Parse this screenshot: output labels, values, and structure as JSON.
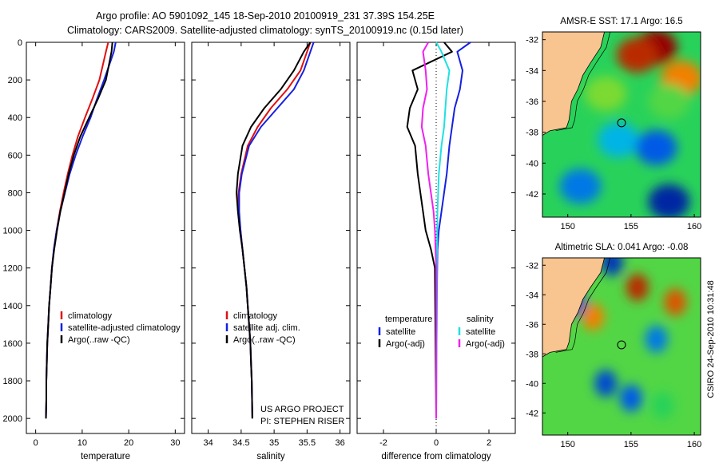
{
  "header": {
    "title_line1": "Argo profile: AO 5901092_145 18-Sep-2010 20100919_231 37.39S 154.25E",
    "title_line2": "Climatology: CARS2009. Satellite-adjusted climatology: synTS_20100919.nc (0.15d later)"
  },
  "colors": {
    "red": "#e01010",
    "blue": "#1520e0",
    "black": "#000000",
    "cyan": "#20e0e0",
    "magenta": "#f020f0",
    "land": "#f8c490"
  },
  "chart_data": [
    {
      "type": "line",
      "id": "temperature",
      "xlabel": "temperature",
      "ylabel": "",
      "xlim": [
        -2,
        32
      ],
      "ylim": [
        2080,
        0
      ],
      "xticks": [
        0,
        10,
        20,
        30
      ],
      "yticks": [
        0,
        200,
        400,
        600,
        800,
        1000,
        1200,
        1400,
        1600,
        1800,
        2000
      ],
      "legend": [
        "climatology",
        "satellite-adjusted climatology",
        "Argo(..raw -QC)"
      ],
      "series": [
        {
          "name": "climatology",
          "color": "red",
          "x": [
            15.6,
            15.1,
            13.7,
            12.2,
            10.6,
            9.1,
            7.9,
            6.9,
            6.0,
            5.2,
            4.5,
            3.9,
            3.5,
            3.2,
            2.9,
            2.7,
            2.5,
            2.4,
            2.3,
            2.3,
            2.2
          ],
          "y": [
            0,
            50,
            200,
            300,
            400,
            500,
            600,
            700,
            800,
            900,
            1000,
            1100,
            1200,
            1300,
            1400,
            1500,
            1600,
            1700,
            1800,
            1900,
            2000
          ]
        },
        {
          "name": "satellite-adjusted climatology",
          "color": "blue",
          "x": [
            17.2,
            16.8,
            14.7,
            13.2,
            11.8,
            10.1,
            8.6,
            7.3,
            6.3,
            5.3,
            4.5,
            3.9,
            3.5,
            3.2,
            2.9,
            2.7,
            2.5,
            2.4,
            2.3,
            2.3,
            2.2
          ],
          "y": [
            0,
            50,
            200,
            300,
            400,
            500,
            600,
            700,
            800,
            900,
            1000,
            1100,
            1200,
            1300,
            1400,
            1500,
            1600,
            1700,
            1800,
            1900,
            2000
          ]
        },
        {
          "name": "Argo(..raw -QC)",
          "color": "black",
          "x": [
            16.5,
            16.3,
            15.1,
            13.4,
            11.5,
            9.6,
            8.2,
            7.1,
            6.2,
            5.3,
            4.6,
            4.0,
            3.5,
            3.2,
            2.9,
            2.7,
            2.5,
            2.4,
            2.3,
            2.3,
            2.2
          ],
          "y": [
            0,
            50,
            200,
            300,
            400,
            500,
            600,
            700,
            800,
            900,
            1000,
            1100,
            1200,
            1300,
            1400,
            1500,
            1600,
            1700,
            1800,
            1900,
            2000
          ]
        }
      ]
    },
    {
      "type": "line",
      "id": "salinity",
      "xlabel": "salinity",
      "ylabel": "",
      "xlim": [
        33.75,
        36.15
      ],
      "ylim": [
        2080,
        0
      ],
      "xticks": [
        34,
        34.5,
        35,
        35.5,
        36
      ],
      "legend": [
        "climatology",
        "satellite adj. clim.",
        "Argo(..raw -QC)"
      ],
      "annotations": [
        "US ARGO PROJECT",
        "PI: STEPHEN RISER"
      ],
      "series": [
        {
          "name": "climatology",
          "color": "red",
          "x": [
            35.55,
            35.5,
            35.4,
            35.2,
            34.95,
            34.75,
            34.6,
            34.5,
            34.46,
            34.46,
            34.49,
            34.52,
            34.55,
            34.58,
            34.6,
            34.62,
            34.64,
            34.65,
            34.66,
            34.67
          ],
          "y": [
            0,
            50,
            150,
            250,
            350,
            450,
            550,
            700,
            800,
            900,
            1000,
            1100,
            1200,
            1300,
            1400,
            1500,
            1600,
            1700,
            1800,
            2000
          ]
        },
        {
          "name": "satellite adj. clim.",
          "color": "blue",
          "x": [
            35.6,
            35.55,
            35.45,
            35.3,
            35.05,
            34.8,
            34.62,
            34.51,
            34.47,
            34.47,
            34.49,
            34.52,
            34.55,
            34.58,
            34.6,
            34.62,
            34.64,
            34.65,
            34.66,
            34.67
          ],
          "y": [
            0,
            50,
            150,
            250,
            350,
            450,
            550,
            700,
            800,
            900,
            1000,
            1100,
            1200,
            1300,
            1400,
            1500,
            1600,
            1700,
            1800,
            2000
          ]
        },
        {
          "name": "Argo(..raw -QC)",
          "color": "black",
          "x": [
            35.55,
            35.45,
            35.3,
            35.1,
            34.85,
            34.65,
            34.52,
            34.45,
            34.43,
            34.45,
            34.48,
            34.52,
            34.55,
            34.58,
            34.6,
            34.62,
            34.64,
            34.65,
            34.66,
            34.67
          ],
          "y": [
            0,
            50,
            150,
            250,
            350,
            450,
            550,
            700,
            800,
            900,
            1000,
            1100,
            1200,
            1300,
            1400,
            1500,
            1600,
            1700,
            1800,
            2000
          ]
        }
      ]
    },
    {
      "type": "line",
      "id": "difference",
      "xlabel": "difference from climatology",
      "ylabel": "",
      "xlim": [
        -3,
        3
      ],
      "ylim": [
        2080,
        0
      ],
      "xticks": [
        -2,
        0,
        2
      ],
      "legend_left_title": "temperature",
      "legend_right_title": "salinity",
      "legend": [
        "satellite",
        "Argo(-adj)",
        "satellite",
        "Argo(-adj)"
      ],
      "series": [
        {
          "name": "temperature satellite",
          "color": "blue",
          "x": [
            1.3,
            0.8,
            1.0,
            0.9,
            0.7,
            0.6,
            0.5,
            0.4,
            0.3,
            0.2,
            0.1,
            0.05,
            0.03,
            0.02,
            0.01,
            0.0
          ],
          "y": [
            0,
            50,
            150,
            250,
            350,
            450,
            550,
            700,
            800,
            900,
            1000,
            1100,
            1300,
            1500,
            1700,
            2000
          ]
        },
        {
          "name": "temperature Argo(-adj)",
          "color": "black",
          "x": [
            0.3,
            0.6,
            -0.9,
            -0.7,
            -1.0,
            -1.1,
            -0.8,
            -0.7,
            -0.6,
            -0.5,
            -0.4,
            -0.2,
            -0.05,
            0.0
          ],
          "y": [
            0,
            50,
            150,
            250,
            350,
            450,
            550,
            700,
            800,
            900,
            1000,
            1100,
            1200,
            2000
          ]
        },
        {
          "name": "salinity satellite",
          "color": "cyan",
          "x": [
            0.0,
            0.2,
            0.5,
            0.4,
            0.35,
            0.3,
            0.2,
            0.1,
            0.05,
            0.02,
            0.0
          ],
          "y": [
            0,
            50,
            150,
            250,
            350,
            450,
            550,
            700,
            900,
            1200,
            2000
          ]
        },
        {
          "name": "salinity Argo(-adj)",
          "color": "magenta",
          "x": [
            -0.3,
            -0.5,
            -0.4,
            -0.35,
            -0.5,
            -0.55,
            -0.4,
            -0.3,
            -0.2,
            -0.1,
            -0.05,
            0.0,
            0.0
          ],
          "y": [
            0,
            50,
            150,
            250,
            350,
            450,
            550,
            700,
            800,
            900,
            1000,
            1200,
            2000
          ]
        }
      ]
    },
    {
      "type": "heatmap",
      "id": "sst-map",
      "title": "AMSR-E SST: 17.1  Argo: 16.5",
      "xlim": [
        148,
        160.5
      ],
      "ylim": [
        -43.5,
        -31.5
      ],
      "xticks": [
        150,
        155,
        160
      ],
      "yticks": [
        -32,
        -34,
        -36,
        -38,
        -40,
        -42
      ],
      "marker": {
        "lon": 154.25,
        "lat": -37.39
      },
      "fields": [
        {
          "lon": 157,
          "lat": -32.5,
          "value": 1.0
        },
        {
          "lon": 155.5,
          "lat": -33,
          "value": 0.95
        },
        {
          "lon": 159,
          "lat": -34.5,
          "value": 0.85
        },
        {
          "lon": 153,
          "lat": -35.5,
          "value": 0.6
        },
        {
          "lon": 158,
          "lat": -36,
          "value": 0.55
        },
        {
          "lon": 154,
          "lat": -38.5,
          "value": 0.35
        },
        {
          "lon": 157,
          "lat": -39,
          "value": 0.2
        },
        {
          "lon": 151,
          "lat": -41.5,
          "value": 0.25
        },
        {
          "lon": 158,
          "lat": -42.5,
          "value": 0.05
        }
      ]
    },
    {
      "type": "heatmap",
      "id": "sla-map",
      "title": "Altimetric SLA: 0.041  Argo: -0.08",
      "xlim": [
        148,
        160.5
      ],
      "ylim": [
        -43.5,
        -31.5
      ],
      "xticks": [
        150,
        155,
        160
      ],
      "yticks": [
        -32,
        -34,
        -36,
        -38,
        -40,
        -42
      ],
      "marker": {
        "lon": 154.25,
        "lat": -37.39
      },
      "fields": [
        {
          "lon": 155.5,
          "lat": -33.5,
          "value": 0.95
        },
        {
          "lon": 158.5,
          "lat": -34.5,
          "value": 0.9
        },
        {
          "lon": 152,
          "lat": -35.5,
          "value": 0.85
        },
        {
          "lon": 153.5,
          "lat": -31.8,
          "value": 0.1
        },
        {
          "lon": 150.5,
          "lat": -34.5,
          "value": 0.15
        },
        {
          "lon": 157,
          "lat": -37,
          "value": 0.25
        },
        {
          "lon": 153,
          "lat": -40,
          "value": 0.15
        },
        {
          "lon": 155,
          "lat": -41,
          "value": 0.2
        },
        {
          "lon": 157.5,
          "lat": -41.5,
          "value": 0.5
        }
      ]
    }
  ],
  "side_label": "CSIRO 24-Sep-2010 10:31:48"
}
